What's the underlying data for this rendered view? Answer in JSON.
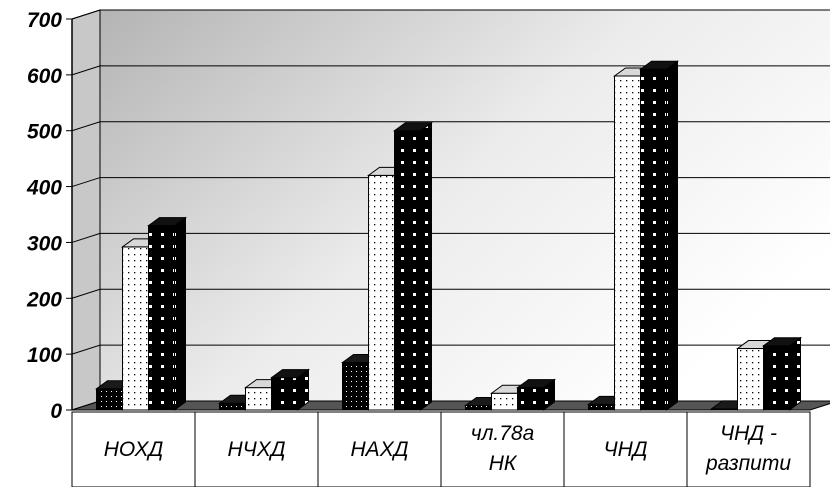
{
  "chart_data": {
    "type": "bar",
    "title": "",
    "xlabel": "",
    "ylabel": "",
    "ylim": [
      0,
      700
    ],
    "yticks": [
      0,
      100,
      200,
      300,
      400,
      500,
      600,
      700
    ],
    "grid": true,
    "legend": "none",
    "categories": [
      [
        "НОХД"
      ],
      [
        "НЧХД"
      ],
      [
        "НАХД"
      ],
      [
        "чл.78а",
        "НК"
      ],
      [
        "ЧНД"
      ],
      [
        "ЧНД -",
        "разпити"
      ]
    ],
    "series": [
      {
        "pattern": "dark-dots",
        "values": [
          38,
          12,
          85,
          8,
          10,
          2
        ]
      },
      {
        "pattern": "light-dots",
        "values": [
          292,
          40,
          420,
          30,
          598,
          110
        ]
      },
      {
        "pattern": "checker",
        "values": [
          330,
          58,
          500,
          40,
          610,
          115
        ]
      }
    ]
  }
}
